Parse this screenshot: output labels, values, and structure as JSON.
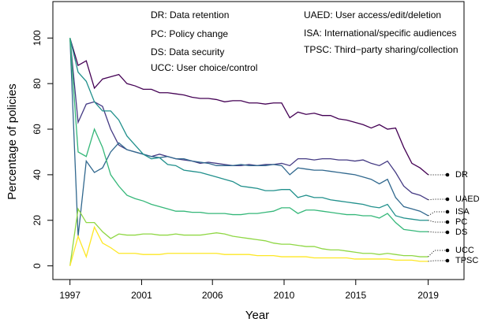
{
  "chart_data": {
    "type": "line",
    "xlabel": "Year",
    "ylabel": "Percentage of policies",
    "annotations": [
      "DR: Data retention",
      "PC: Policy change",
      "DS: Data security",
      "UCC: User choice/control",
      "UAED: User access/edit/deletion",
      "ISA: International/specific audiences",
      "TPSC: Third−party sharing/collection"
    ],
    "x": [
      0,
      1,
      2,
      3,
      4,
      5,
      6,
      7,
      8,
      9,
      10,
      11,
      12,
      13,
      14,
      15,
      16,
      17,
      18,
      19,
      20,
      21,
      22,
      23,
      24,
      25,
      26,
      27,
      28,
      29,
      30,
      31,
      32,
      33,
      34,
      35,
      36,
      37,
      38,
      39,
      40,
      41,
      42,
      43,
      44
    ],
    "xlim": [
      -2.1,
      48.4
    ],
    "xticks": [
      {
        "value": 0,
        "label": "1997"
      },
      {
        "value": 8.8,
        "label": "2001"
      },
      {
        "value": 17.5,
        "label": "2006"
      },
      {
        "value": 26.3,
        "label": "2010"
      },
      {
        "value": 35.1,
        "label": "2015"
      },
      {
        "value": 44,
        "label": "2019"
      }
    ],
    "ylim": [
      -6,
      116
    ],
    "yticks": [
      0,
      20,
      40,
      60,
      80,
      100
    ],
    "series": [
      {
        "name": "DR",
        "color": "#440154",
        "values": [
          100,
          88,
          90,
          78,
          82,
          83,
          84,
          80,
          79,
          77.5,
          77.5,
          76,
          76,
          75.5,
          75,
          74,
          73.5,
          73.5,
          73,
          72,
          72.5,
          72.5,
          71.5,
          71.5,
          71,
          71.5,
          71.5,
          65,
          67.5,
          66.5,
          67,
          66,
          66,
          64.5,
          64,
          63,
          62,
          60.5,
          62,
          60,
          60.5,
          52,
          45,
          43,
          40
        ]
      },
      {
        "name": "UAED",
        "color": "#443a83",
        "values": [
          100,
          63,
          71,
          72,
          70,
          60,
          53,
          51,
          50,
          49,
          48,
          49,
          48,
          47,
          46.5,
          46,
          45,
          45.5,
          45,
          44.5,
          44,
          44,
          44.5,
          44,
          44.5,
          44.5,
          45,
          44,
          47,
          47,
          46.5,
          47,
          47,
          46.5,
          46.5,
          46,
          46.5,
          45,
          44,
          46,
          41,
          35,
          32,
          31,
          29
        ]
      },
      {
        "name": "ISA",
        "color": "#31688e",
        "values": [
          100,
          13,
          46,
          41,
          43,
          50,
          54,
          51,
          50,
          49,
          48,
          47.5,
          48,
          47,
          47,
          46,
          45.5,
          45,
          44,
          44,
          44,
          44.5,
          44,
          44,
          44,
          44.5,
          44,
          40,
          43,
          42.5,
          42,
          42,
          41.5,
          41,
          40.5,
          40,
          39,
          38,
          36,
          38,
          30,
          26,
          25,
          24,
          22
        ]
      },
      {
        "name": "PC",
        "color": "#21908c",
        "values": [
          100,
          85,
          81,
          72,
          68,
          68,
          64,
          57,
          53,
          49,
          47,
          47.5,
          44.5,
          44,
          42,
          41.5,
          41,
          40,
          39,
          38,
          37,
          35,
          34.5,
          34,
          33,
          33,
          33.5,
          33.5,
          30,
          31,
          30,
          30,
          29,
          28.5,
          28,
          27.5,
          27,
          26,
          25.5,
          27,
          22,
          21,
          20.5,
          20,
          20
        ]
      },
      {
        "name": "DS",
        "color": "#35b779",
        "values": [
          100,
          50,
          48,
          60,
          52,
          40,
          35,
          31,
          29.5,
          28.5,
          27,
          26,
          25,
          24,
          24,
          23.5,
          23.5,
          23,
          23,
          23,
          22.5,
          22.5,
          23,
          23,
          23.5,
          24,
          25.5,
          25.5,
          23,
          24.5,
          24.5,
          24,
          23.5,
          23,
          22.5,
          22.5,
          22,
          22,
          21,
          23,
          19,
          16,
          15.5,
          15,
          15
        ]
      },
      {
        "name": "UCC",
        "color": "#8fd744",
        "values": [
          0,
          25,
          19,
          19,
          15,
          12,
          14,
          13.5,
          13.5,
          14,
          14,
          13.5,
          13.5,
          14,
          13.5,
          13.5,
          13.5,
          14,
          14.5,
          14,
          13,
          12.5,
          12,
          11.5,
          11,
          10,
          9.5,
          9.5,
          9,
          8.5,
          8.5,
          7.5,
          7,
          7,
          6.5,
          6,
          5.5,
          5.5,
          5,
          5.5,
          5,
          4.5,
          4.5,
          4,
          4
        ]
      },
      {
        "name": "TPSC",
        "color": "#fde725",
        "values": [
          0,
          13,
          4,
          17,
          10,
          8,
          5.5,
          5.5,
          5.5,
          5,
          5,
          5,
          5.5,
          5.5,
          5.5,
          5.5,
          5.5,
          5.5,
          5.5,
          5,
          5,
          5,
          5,
          4.5,
          4.5,
          4.5,
          4,
          4,
          4,
          4,
          3.5,
          3.5,
          3.5,
          3.5,
          3.5,
          3,
          3,
          3,
          3,
          3,
          2.5,
          2.5,
          2.5,
          2,
          2
        ]
      }
    ]
  }
}
